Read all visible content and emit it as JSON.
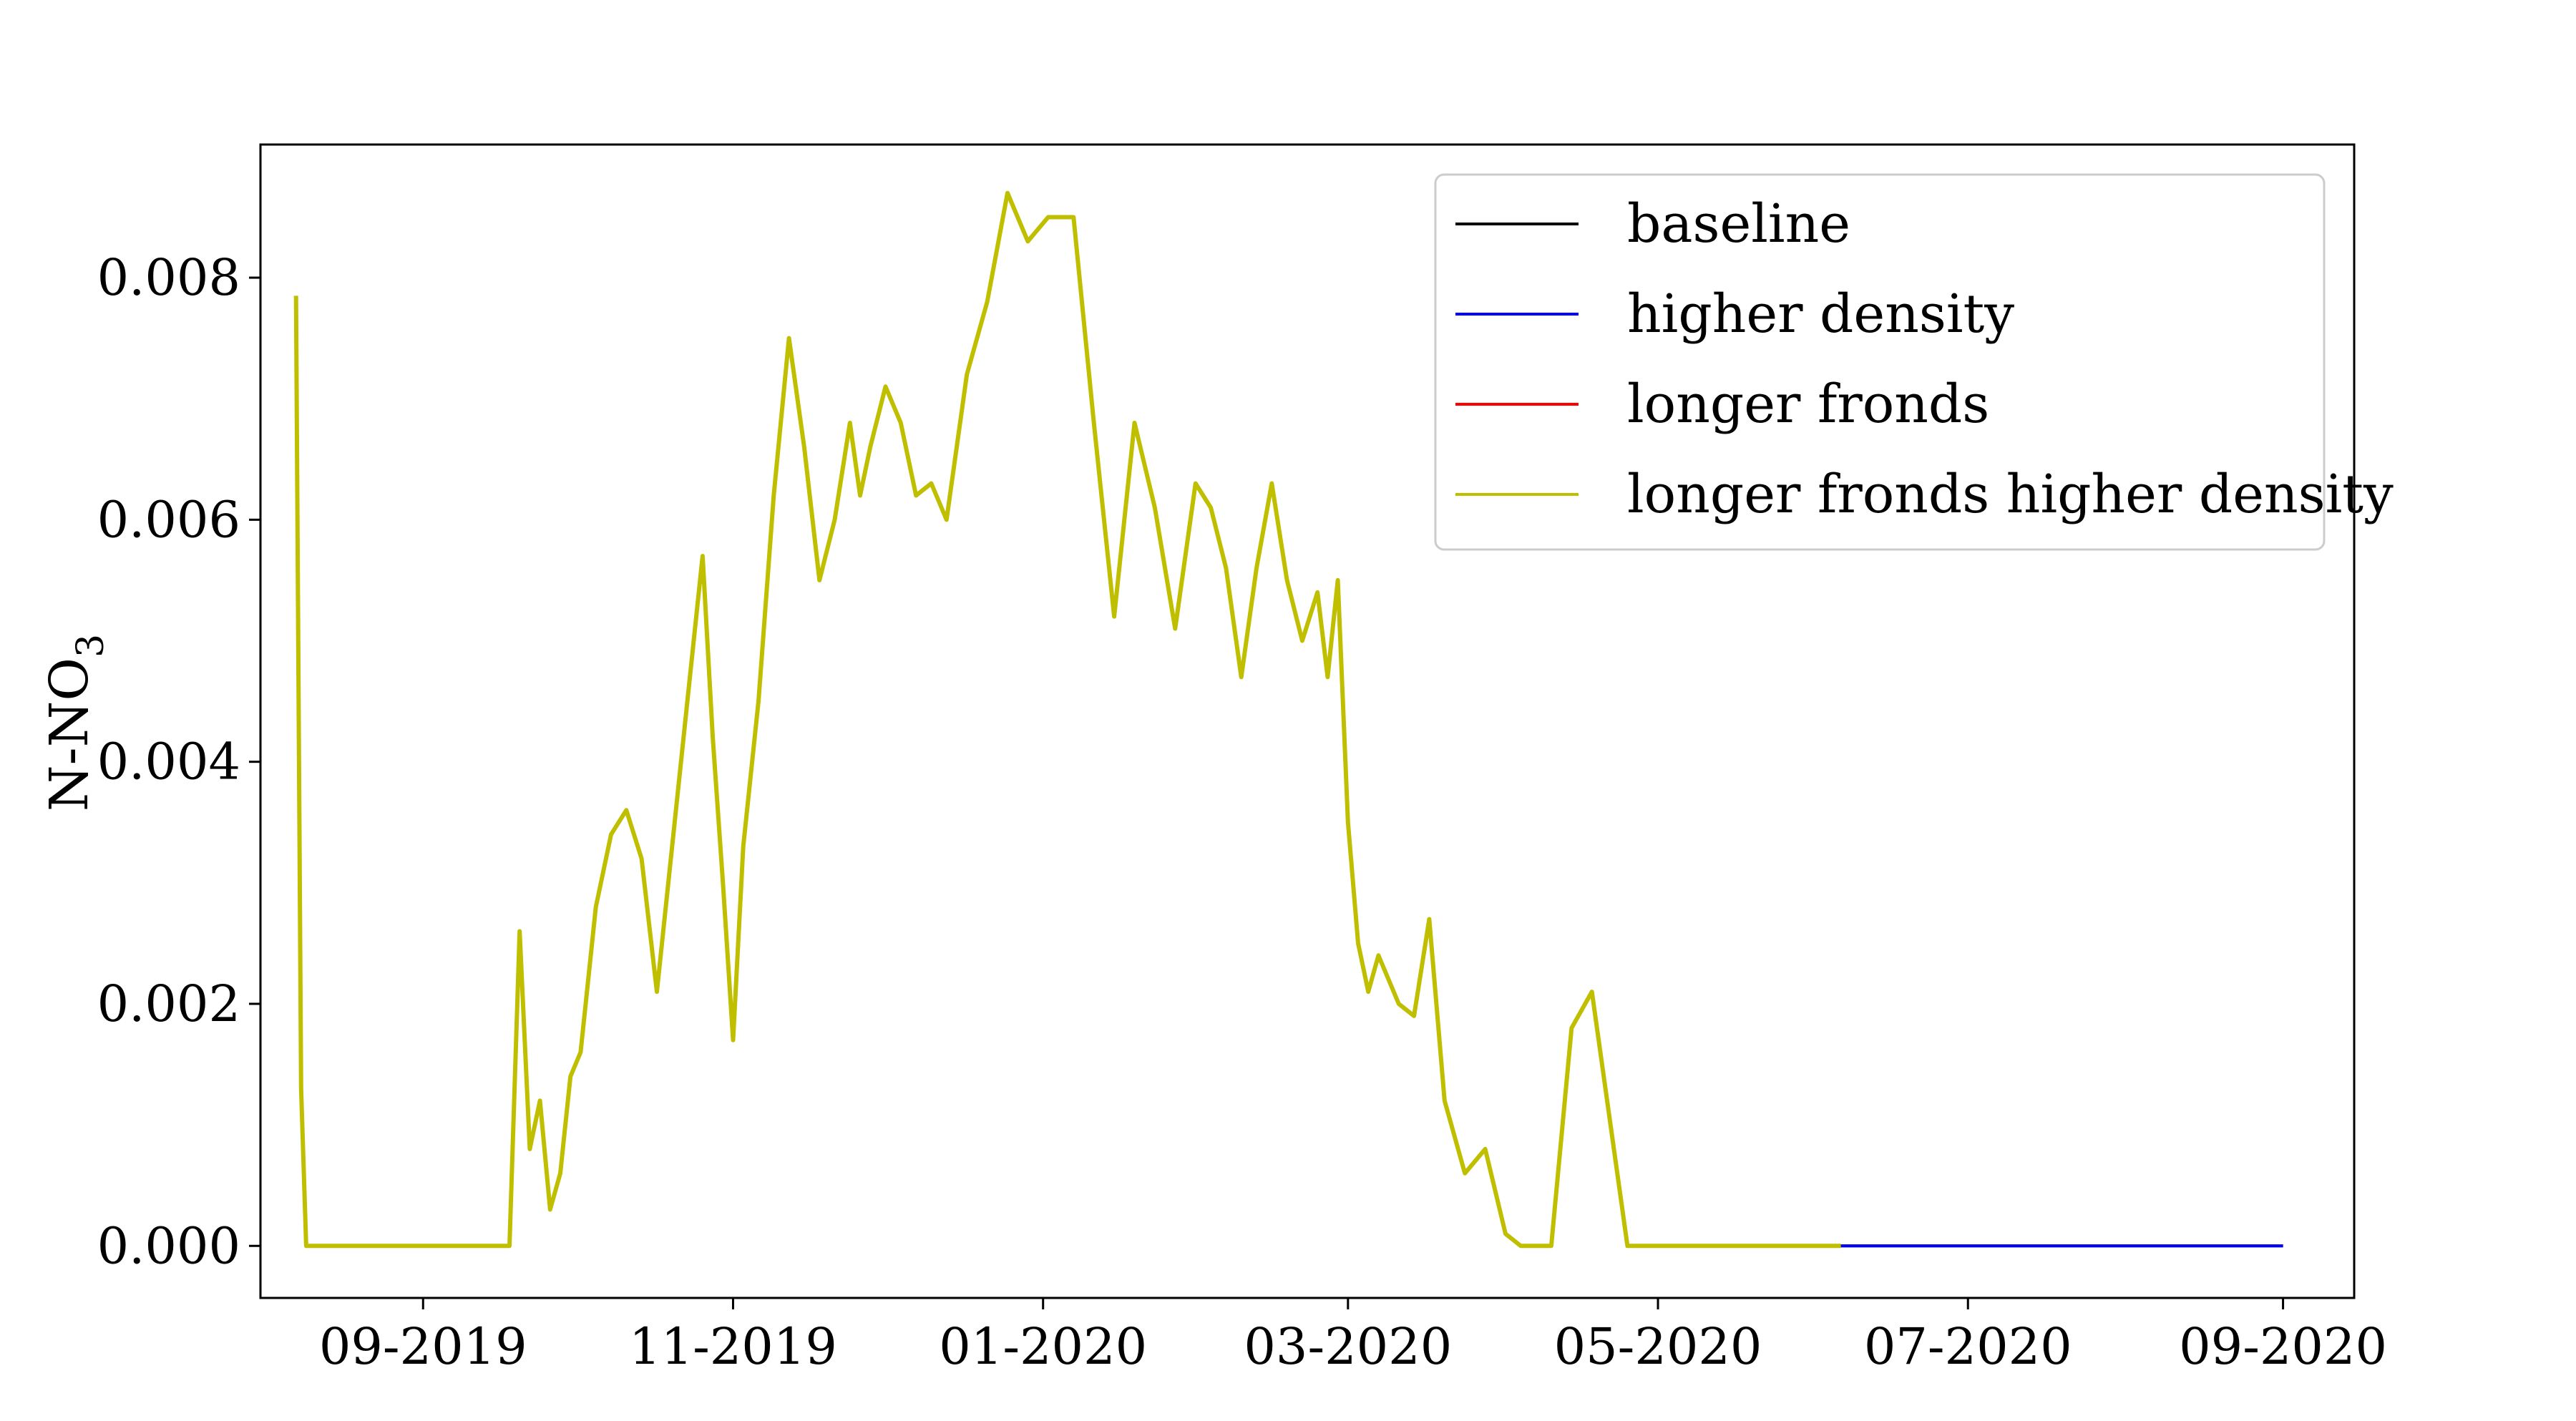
{
  "chart_data": {
    "type": "line",
    "title": "",
    "xlabel": "",
    "ylabel": "N-NO",
    "ylabel_subscript": "3",
    "x_range": [
      "2019-07-31",
      "2020-09-15"
    ],
    "ylim": [
      -0.00043,
      0.0091
    ],
    "x_ticks": [
      {
        "date": "2019-09-01",
        "label": "09-2019"
      },
      {
        "date": "2019-11-01",
        "label": "11-2019"
      },
      {
        "date": "2020-01-01",
        "label": "01-2020"
      },
      {
        "date": "2020-03-01",
        "label": "03-2020"
      },
      {
        "date": "2020-05-01",
        "label": "05-2020"
      },
      {
        "date": "2020-07-01",
        "label": "07-2020"
      },
      {
        "date": "2020-09-01",
        "label": "09-2020"
      }
    ],
    "y_ticks": [
      {
        "value": 0.0,
        "label": "0.000"
      },
      {
        "value": 0.002,
        "label": "0.002"
      },
      {
        "value": 0.004,
        "label": "0.004"
      },
      {
        "value": 0.006,
        "label": "0.006"
      },
      {
        "value": 0.008,
        "label": "0.008"
      }
    ],
    "grid": false,
    "legend_position": "top-right",
    "series": [
      {
        "name": "baseline",
        "color": "#000000",
        "x": [
          "2020-06-06",
          "2020-09-01"
        ],
        "y": [
          0.0,
          0.0
        ]
      },
      {
        "name": "higher density",
        "color": "#0000ff",
        "x": [
          "2020-06-06",
          "2020-09-01"
        ],
        "y": [
          0.0,
          0.0
        ]
      },
      {
        "name": "longer fronds",
        "color": "#ff0000",
        "x": [
          "2020-06-06",
          "2020-06-06"
        ],
        "y": [
          0.0,
          0.0
        ]
      },
      {
        "name": "longer fronds higher density",
        "color": "#bfbf00",
        "x": [
          "2019-08-07",
          "2019-08-08",
          "2019-08-09",
          "2019-09-18",
          "2019-09-20",
          "2019-09-22",
          "2019-09-24",
          "2019-09-26",
          "2019-09-28",
          "2019-09-30",
          "2019-10-02",
          "2019-10-05",
          "2019-10-08",
          "2019-10-11",
          "2019-10-14",
          "2019-10-17",
          "2019-10-20",
          "2019-10-23",
          "2019-10-26",
          "2019-10-28",
          "2019-10-30",
          "2019-11-01",
          "2019-11-03",
          "2019-11-06",
          "2019-11-09",
          "2019-11-12",
          "2019-11-15",
          "2019-11-18",
          "2019-11-21",
          "2019-11-24",
          "2019-11-26",
          "2019-11-28",
          "2019-12-01",
          "2019-12-04",
          "2019-12-07",
          "2019-12-10",
          "2019-12-13",
          "2019-12-17",
          "2019-12-21",
          "2019-12-25",
          "2019-12-29",
          "2020-01-02",
          "2020-01-07",
          "2020-01-11",
          "2020-01-15",
          "2020-01-19",
          "2020-01-23",
          "2020-01-27",
          "2020-01-31",
          "2020-02-03",
          "2020-02-06",
          "2020-02-09",
          "2020-02-12",
          "2020-02-15",
          "2020-02-18",
          "2020-02-21",
          "2020-02-24",
          "2020-02-26",
          "2020-02-28",
          "2020-03-01",
          "2020-03-03",
          "2020-03-05",
          "2020-03-07",
          "2020-03-09",
          "2020-03-11",
          "2020-03-14",
          "2020-03-17",
          "2020-03-20",
          "2020-03-24",
          "2020-03-28",
          "2020-04-01",
          "2020-04-04",
          "2020-04-07",
          "2020-04-10",
          "2020-04-14",
          "2020-04-18",
          "2020-04-21",
          "2020-04-25",
          "2020-04-30",
          "2020-05-02",
          "2020-05-04",
          "2020-05-06",
          "2020-05-08",
          "2020-06-06"
        ],
        "y": [
          0.00785,
          0.0013,
          0.0,
          0.0,
          0.0026,
          0.0008,
          0.0012,
          0.0003,
          0.0006,
          0.0014,
          0.0016,
          0.0028,
          0.0034,
          0.0036,
          0.0032,
          0.0021,
          0.0033,
          0.0045,
          0.0057,
          0.0042,
          0.003,
          0.0017,
          0.0033,
          0.0045,
          0.0062,
          0.0075,
          0.0066,
          0.0055,
          0.006,
          0.0068,
          0.0062,
          0.0066,
          0.0071,
          0.0068,
          0.0062,
          0.0063,
          0.006,
          0.0072,
          0.0078,
          0.0087,
          0.0083,
          0.0085,
          0.0085,
          0.0068,
          0.0052,
          0.0068,
          0.0061,
          0.0051,
          0.0063,
          0.0061,
          0.0056,
          0.0047,
          0.0056,
          0.0063,
          0.0055,
          0.005,
          0.0054,
          0.0047,
          0.0055,
          0.0035,
          0.0025,
          0.0021,
          0.0024,
          0.0022,
          0.002,
          0.0019,
          0.0027,
          0.0012,
          0.0006,
          0.0008,
          0.0001,
          0.0,
          0.0,
          0.0,
          0.0018,
          0.0021,
          0.0012,
          0.0,
          0.0,
          0.0,
          0.0,
          0.0,
          0.0,
          0.0
        ]
      }
    ],
    "legend_entries": [
      "baseline",
      "higher density",
      "longer fronds",
      "longer fronds higher density"
    ]
  }
}
